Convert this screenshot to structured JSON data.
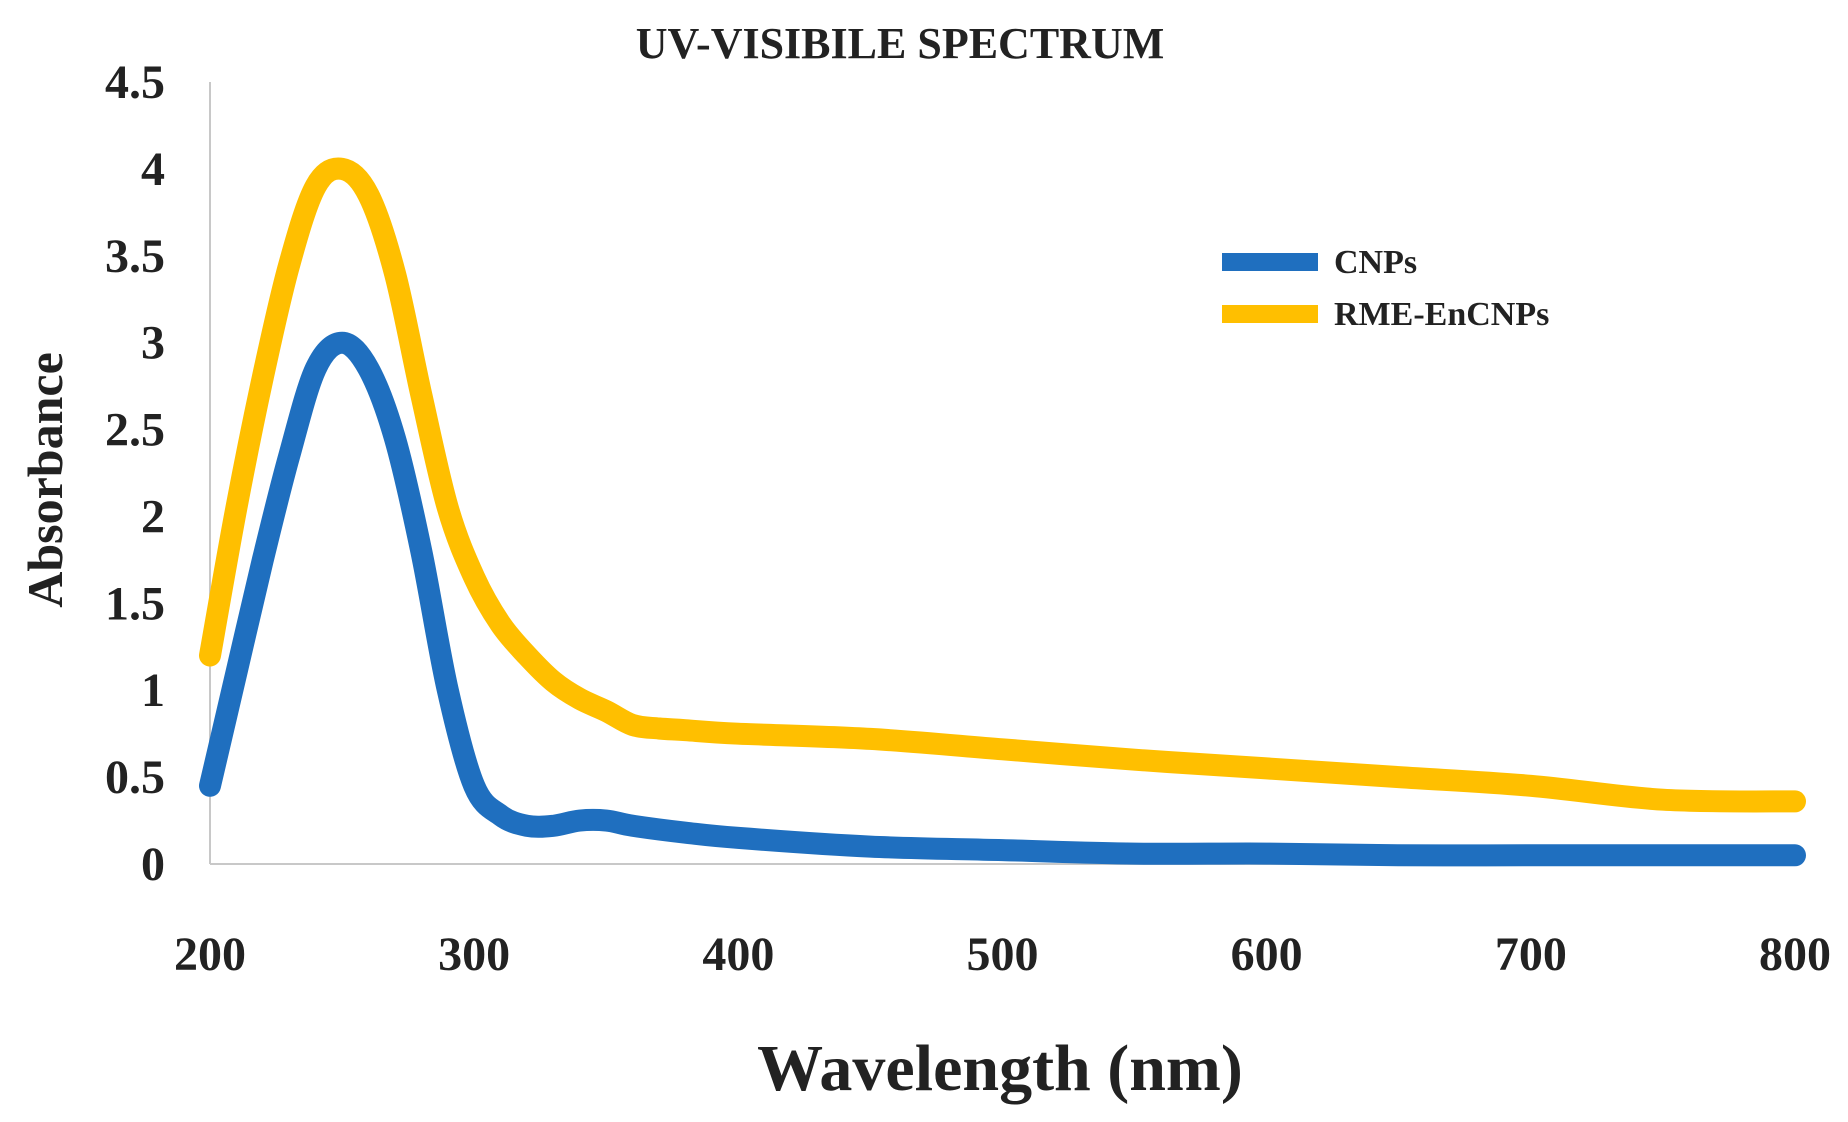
{
  "chart_data": {
    "type": "line",
    "title": "UV-VISIBILE SPECTRUM",
    "xlabel": "Wavelength (nm)",
    "ylabel": "Absorbance",
    "xlim": [
      200,
      800
    ],
    "ylim": [
      0,
      4.5
    ],
    "xticks": [
      "200",
      "300",
      "400",
      "500",
      "600",
      "700",
      "800"
    ],
    "yticks": [
      "0",
      "0.5",
      "1",
      "1.5",
      "2",
      "2.5",
      "3",
      "3.5",
      "4",
      "4.5"
    ],
    "legend_position": "top-right",
    "grid": false,
    "series": [
      {
        "name": "CNPs",
        "color": "#1f6fbf",
        "x": [
          200,
          210,
          220,
          230,
          240,
          250,
          260,
          270,
          280,
          290,
          300,
          310,
          320,
          330,
          340,
          350,
          360,
          380,
          400,
          450,
          500,
          550,
          600,
          650,
          700,
          750,
          800
        ],
        "y": [
          0.45,
          1.1,
          1.75,
          2.35,
          2.85,
          3.0,
          2.85,
          2.45,
          1.8,
          1.0,
          0.45,
          0.28,
          0.22,
          0.22,
          0.25,
          0.25,
          0.22,
          0.18,
          0.15,
          0.1,
          0.08,
          0.06,
          0.06,
          0.05,
          0.05,
          0.05,
          0.05
        ]
      },
      {
        "name": "RME-EnCNPs",
        "color": "#ffbf00",
        "x": [
          200,
          210,
          220,
          230,
          240,
          250,
          260,
          270,
          280,
          290,
          300,
          310,
          320,
          330,
          340,
          350,
          360,
          370,
          380,
          400,
          450,
          500,
          550,
          600,
          650,
          700,
          750,
          800
        ],
        "y": [
          1.2,
          2.05,
          2.8,
          3.45,
          3.9,
          4.0,
          3.85,
          3.4,
          2.7,
          2.05,
          1.65,
          1.38,
          1.2,
          1.05,
          0.95,
          0.88,
          0.8,
          0.78,
          0.77,
          0.75,
          0.72,
          0.66,
          0.6,
          0.55,
          0.5,
          0.45,
          0.37,
          0.36
        ]
      }
    ]
  }
}
